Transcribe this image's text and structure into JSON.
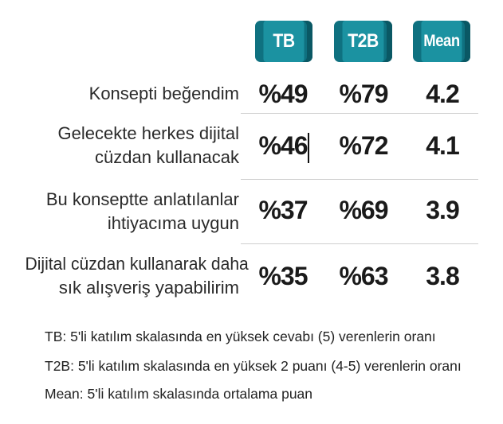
{
  "headers": {
    "tb": "TB",
    "t2b": "T2B",
    "mean": "Mean"
  },
  "rows": [
    {
      "label_lines": [
        "Konsepti beğendim"
      ],
      "tb": "%49",
      "t2b": "%79",
      "mean": "4.2"
    },
    {
      "label_lines": [
        "Gelecekte herkes dijital",
        "cüzdan kullanacak"
      ],
      "tb": "%46",
      "t2b": "%72",
      "mean": "4.1"
    },
    {
      "label_lines": [
        "Bu konseptte anlatılanlar",
        "ihtiyacıma uygun"
      ],
      "tb": "%37",
      "t2b": "%69",
      "mean": "3.9"
    },
    {
      "label_lines": [
        "Dijital cüzdan kullanarak daha",
        "sık alışveriş yapabilirim"
      ],
      "tb": "%35",
      "t2b": "%63",
      "mean": "3.8"
    }
  ],
  "footnotes": [
    "TB: 5'li katılım skalasında en yüksek cevabı (5) verenlerin oranı",
    "T2B: 5'li katılım skalasında en yüksek 2 puanı (4-5) verenlerin oranı",
    "Mean: 5'li katılım skalasında ortalama puan"
  ],
  "colors": {
    "badge_face": "#1b92a1",
    "badge_shadow": "#0a5864"
  },
  "chart_data": {
    "type": "table",
    "columns": [
      "TB",
      "T2B",
      "Mean"
    ],
    "categories": [
      "Konsepti beğendim",
      "Gelecekte herkes dijital cüzdan kullanacak",
      "Bu konseptte anlatılanlar ihtiyacıma uygun",
      "Dijital cüzdan kullanarak daha sık alışveriş yapabilirim"
    ],
    "series": [
      {
        "name": "TB",
        "values": [
          49,
          46,
          37,
          35
        ]
      },
      {
        "name": "T2B",
        "values": [
          79,
          72,
          69,
          63
        ]
      },
      {
        "name": "Mean",
        "values": [
          4.2,
          4.1,
          3.9,
          3.8
        ]
      }
    ]
  }
}
